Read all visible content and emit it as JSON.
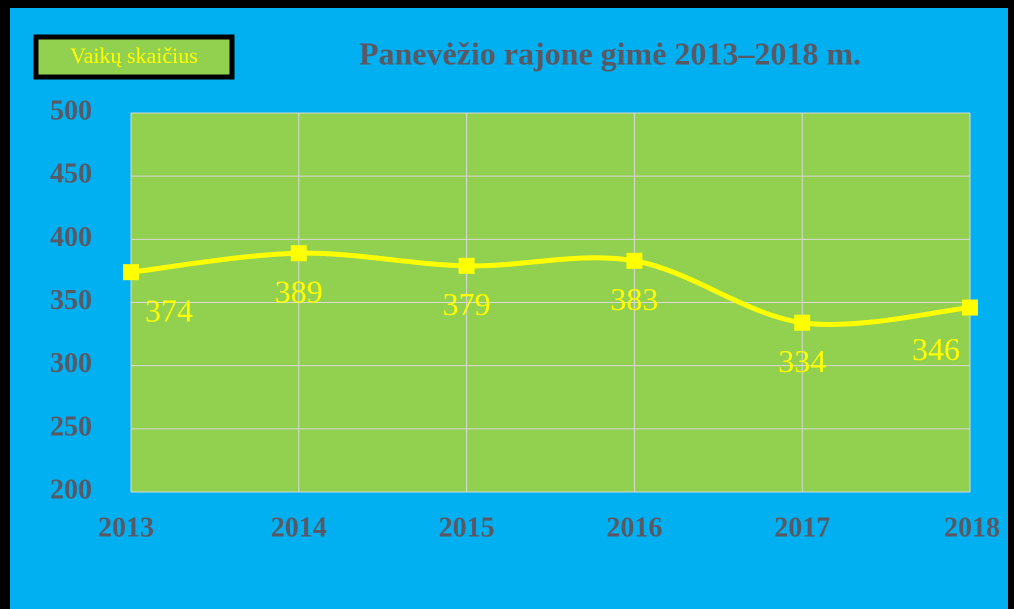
{
  "chart_data": {
    "type": "line",
    "title": "Panevėžio rajone gimė 2013–2018 m.",
    "categories": [
      "2013",
      "2014",
      "2015",
      "2016",
      "2017",
      "2018"
    ],
    "series": [
      {
        "name": "Vaikų skaičius",
        "color": "#ffff00",
        "values": [
          374,
          389,
          379,
          383,
          334,
          346
        ]
      }
    ],
    "ylim": [
      200,
      500
    ],
    "yticks": [
      200,
      250,
      300,
      350,
      400,
      450,
      500
    ],
    "grid": true,
    "legend": "top-left"
  }
}
